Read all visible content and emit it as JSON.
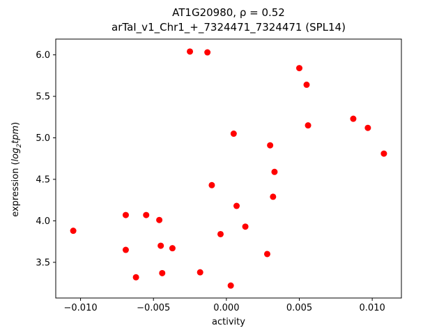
{
  "figure": {
    "title_line1": "AT1G20980, ρ = 0.52",
    "title_line2": "arTaI_v1_Chr1_+_7324471_7324471 (SPL14)",
    "ylabel_parts": [
      "expression (",
      "log",
      "2",
      "tpm",
      ")"
    ]
  },
  "chart_data": {
    "type": "scatter",
    "title": "AT1G20980, ρ = 0.52",
    "subtitle": "arTaI_v1_Chr1_+_7324471_7324471 (SPL14)",
    "xlabel": "activity",
    "ylabel": "expression (log₂tpm)",
    "xlim": [
      -0.0117,
      0.012
    ],
    "ylim": [
      3.07,
      6.19
    ],
    "xticks": [
      -0.01,
      -0.005,
      0.0,
      0.005,
      0.01
    ],
    "yticks": [
      3.5,
      4.0,
      4.5,
      5.0,
      5.5,
      6.0
    ],
    "grid": false,
    "legend": "none",
    "marker_color": "#ff0000",
    "points": [
      [
        -0.0105,
        3.88
      ],
      [
        -0.0069,
        4.07
      ],
      [
        -0.0069,
        3.65
      ],
      [
        -0.0062,
        3.32
      ],
      [
        -0.0055,
        4.07
      ],
      [
        -0.0046,
        4.01
      ],
      [
        -0.0045,
        3.7
      ],
      [
        -0.0044,
        3.37
      ],
      [
        -0.0037,
        3.67
      ],
      [
        -0.0025,
        6.04
      ],
      [
        -0.0018,
        3.38
      ],
      [
        -0.0013,
        6.03
      ],
      [
        -0.001,
        4.43
      ],
      [
        -0.0004,
        3.84
      ],
      [
        0.0003,
        3.22
      ],
      [
        0.0005,
        5.05
      ],
      [
        0.0007,
        4.18
      ],
      [
        0.0013,
        3.93
      ],
      [
        0.0028,
        3.6
      ],
      [
        0.003,
        4.91
      ],
      [
        0.0032,
        4.29
      ],
      [
        0.0033,
        4.59
      ],
      [
        0.005,
        5.84
      ],
      [
        0.0055,
        5.64
      ],
      [
        0.0056,
        5.15
      ],
      [
        0.0087,
        5.23
      ],
      [
        0.0097,
        5.12
      ],
      [
        0.0108,
        4.81
      ]
    ]
  }
}
